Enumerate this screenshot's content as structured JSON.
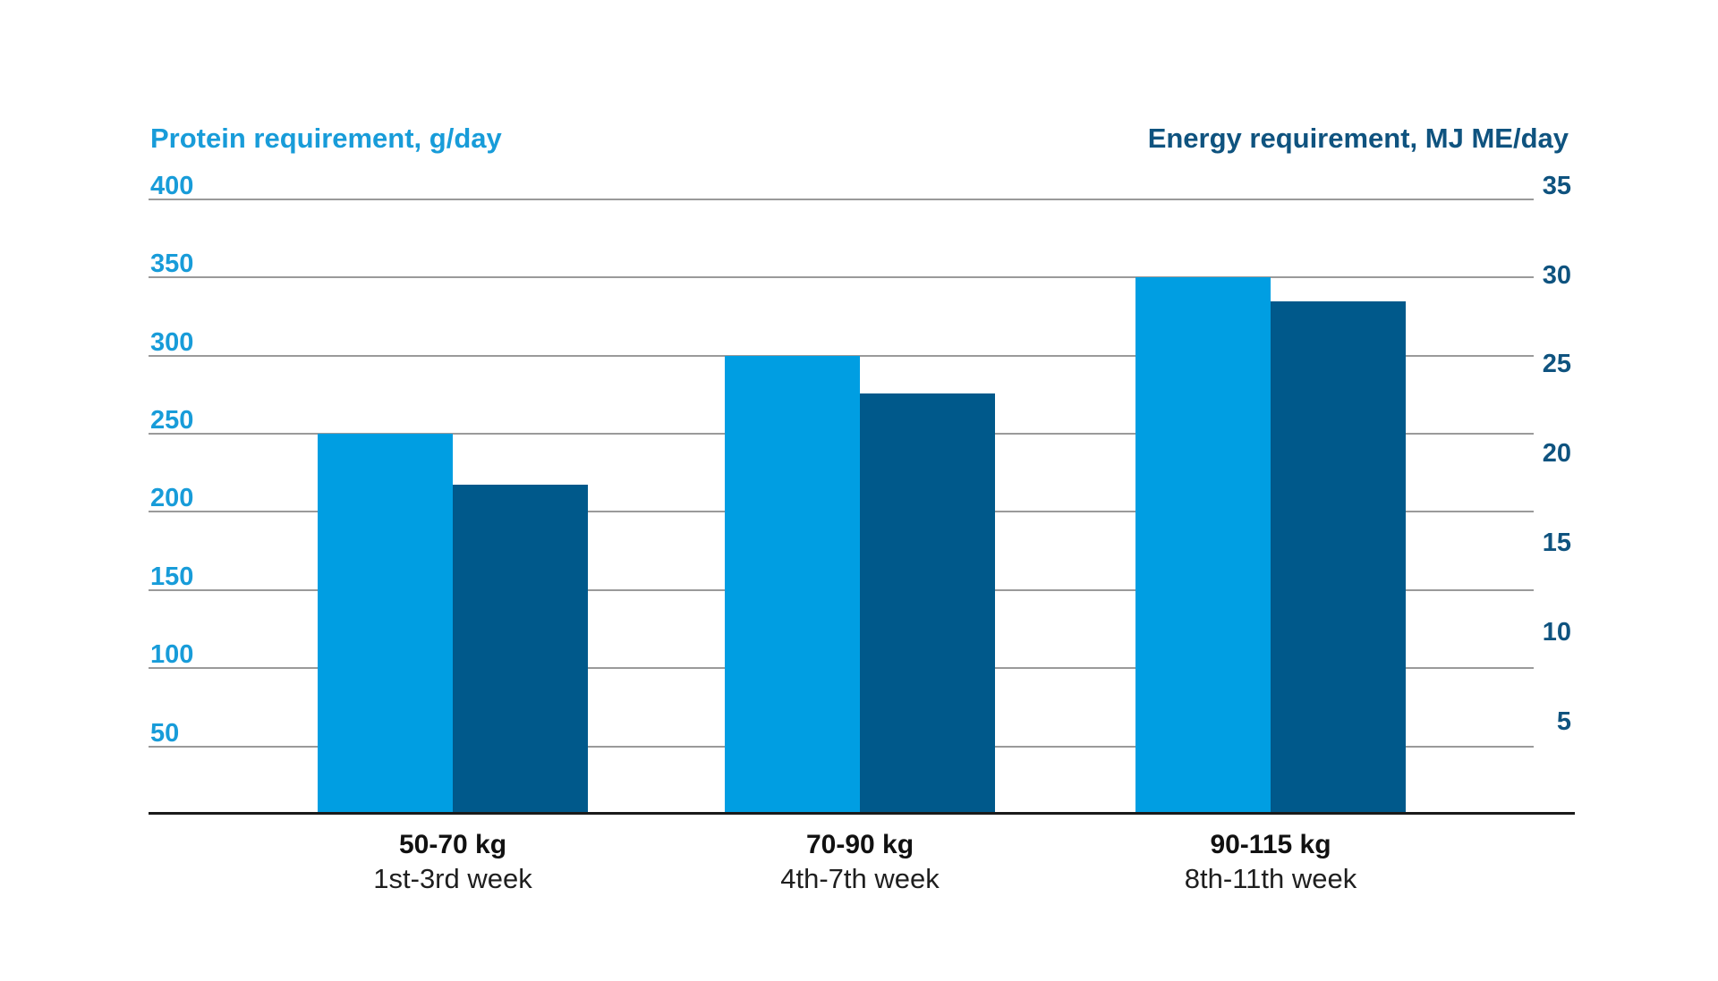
{
  "chart_data": {
    "type": "bar",
    "titles": {
      "left": "Protein requirement, g/day",
      "right": "Energy requirement, MJ ME/day"
    },
    "categories": [
      {
        "weight": "50-70 kg",
        "period": "1st-3rd week"
      },
      {
        "weight": "70-90 kg",
        "period": "4th-7th week"
      },
      {
        "weight": "90-115 kg",
        "period": "8th-11th week"
      }
    ],
    "series": [
      {
        "name": "Protein requirement",
        "unit": "g/day",
        "axis": "left",
        "color": "#009EE2",
        "values": [
          250,
          300,
          350
        ]
      },
      {
        "name": "Energy requirement",
        "unit": "MJ ME/day",
        "axis": "right",
        "color": "#00598B",
        "values": [
          19,
          24.1,
          29.3
        ]
      }
    ],
    "left_axis": {
      "ticks": [
        400,
        350,
        300,
        250,
        200,
        150,
        100,
        50
      ],
      "min": 0,
      "max": 400,
      "text_color": "#189CD9"
    },
    "right_axis": {
      "ticks": [
        35,
        30,
        25,
        20,
        15,
        10,
        5
      ],
      "min": 0,
      "max": 35,
      "text_color": "#0F537F"
    },
    "grid": true,
    "legend": false,
    "gridline_color": "#9A9A9A",
    "axis_line_color": "#1A1A1A"
  }
}
